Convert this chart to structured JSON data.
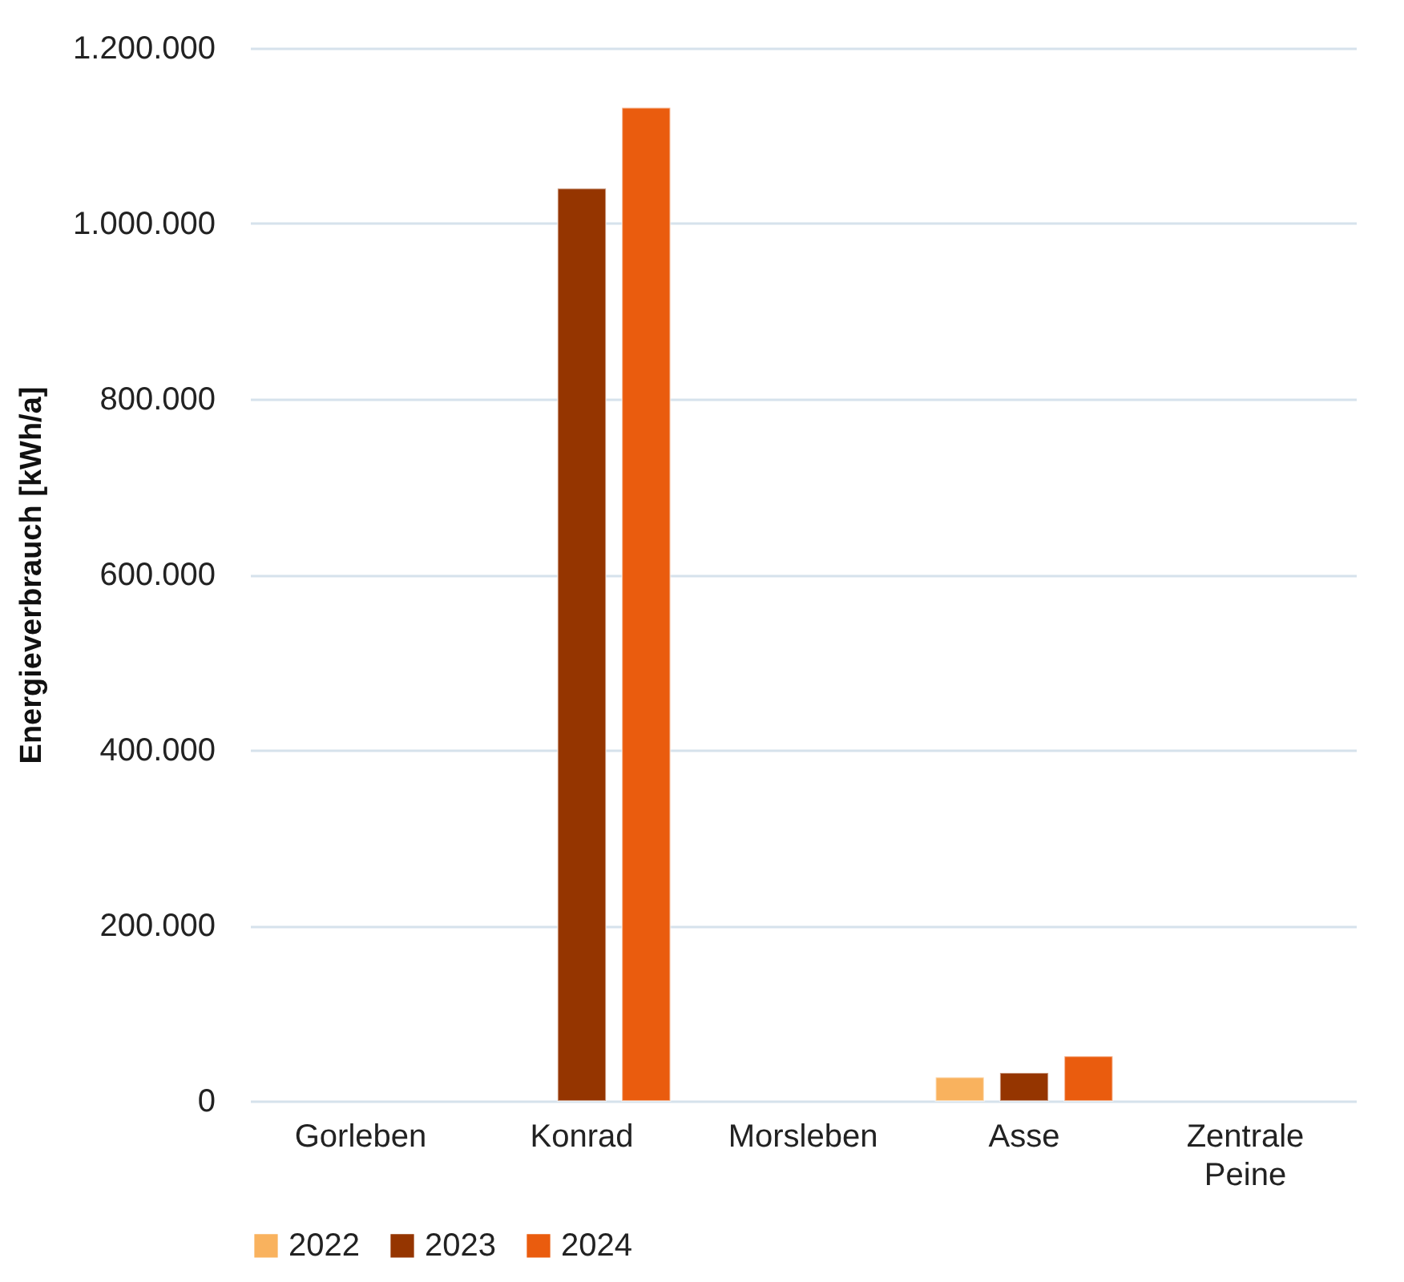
{
  "chart_data": {
    "type": "bar",
    "ylabel": "Energieverbrauch [kWh/a]",
    "categories": [
      "Gorleben",
      "Konrad",
      "Morsleben",
      "Asse",
      "Zentrale Peine"
    ],
    "series": [
      {
        "name": "2022",
        "color": "#f9b25e",
        "values": [
          null,
          null,
          null,
          27000,
          null
        ]
      },
      {
        "name": "2023",
        "color": "#953500",
        "values": [
          null,
          1040000,
          null,
          32000,
          null
        ]
      },
      {
        "name": "2024",
        "color": "#ea5c0e",
        "values": [
          null,
          1132000,
          null,
          51000,
          null
        ]
      }
    ],
    "ylim": [
      0,
      1200000
    ],
    "yticks": [
      {
        "value": 0,
        "label": "0"
      },
      {
        "value": 200000,
        "label": "200.000"
      },
      {
        "value": 400000,
        "label": "400.000"
      },
      {
        "value": 600000,
        "label": "600.000"
      },
      {
        "value": 800000,
        "label": "800.000"
      },
      {
        "value": 1000000,
        "label": "1.000.000"
      },
      {
        "value": 1200000,
        "label": "1.200.000"
      }
    ],
    "grid": "y",
    "legend": "bottom"
  }
}
